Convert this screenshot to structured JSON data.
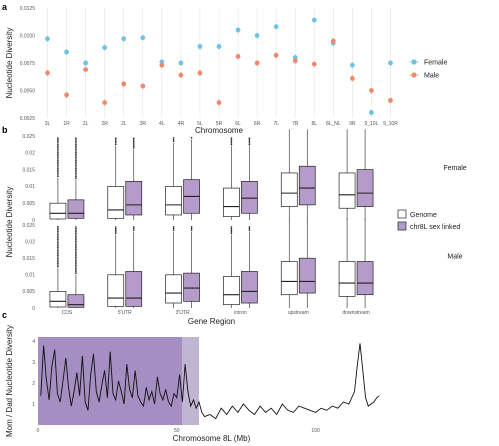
{
  "panels": [
    {
      "letter": "a",
      "chart_data": {
        "type": "scatter",
        "categories": [
          "3L",
          "1R",
          "2L",
          "2R",
          "2L",
          "3R",
          "4L",
          "4R",
          "5L",
          "5R",
          "6L",
          "6R",
          "7L",
          "7R",
          "8L",
          "8L_NL",
          "9R",
          "9_10L",
          "9_10R"
        ],
        "xlabel": "Chromosome",
        "ylabel": "Nucleotide Diversity",
        "ylim": [
          0.0025,
          0.0125
        ],
        "yticks": [
          0.0025,
          0.005,
          0.0075,
          0.01,
          0.0125
        ],
        "ytick_labels": [
          "0.0025",
          "0.0050",
          "0.0075",
          "0.0100",
          "0.0125"
        ],
        "grid": true,
        "legend_position": "right",
        "series": [
          {
            "name": "Female",
            "color": "#6fc3e6",
            "values": [
              0.0097,
              0.0085,
              0.0075,
              0.0089,
              0.0097,
              0.0098,
              0.0076,
              0.0075,
              0.009,
              0.009,
              0.0105,
              0.01,
              0.0108,
              0.008,
              0.0114,
              0.0093,
              0.0073,
              0.003,
              0.0075
            ]
          },
          {
            "name": "Male",
            "color": "#f0896b",
            "values": [
              0.0066,
              0.0046,
              0.0069,
              0.0039,
              0.0056,
              0.0054,
              0.0073,
              0.0064,
              0.0066,
              0.0039,
              0.0081,
              0.0075,
              0.0082,
              0.0077,
              0.0074,
              0.0095,
              0.0061,
              0.005,
              0.0041
            ]
          }
        ]
      }
    },
    {
      "letter": "b",
      "chart_data": {
        "type": "box",
        "categories": [
          "CDS",
          "5'UTR",
          "3'UTR",
          "intron",
          "upstream",
          "downstream"
        ],
        "xlabel": "Gene Region",
        "ylabel": "Nucleotide Diversity",
        "ylim": [
          0,
          0.025
        ],
        "yticks": [
          0,
          0.005,
          0.01,
          0.015,
          0.02,
          0.025
        ],
        "ytick_labels": [
          "0",
          "0.005",
          "0.01",
          "0.015",
          "0.02",
          "0.025"
        ],
        "legend_position": "right",
        "legend": [
          {
            "label": "Genome",
            "color": "#ffffff"
          },
          {
            "label": "chr8L sex linked",
            "color": "#b59bc9"
          }
        ],
        "facets": [
          {
            "label": "Female",
            "series": [
              {
                "name": "Genome",
                "boxes": [
                  {
                    "q1": 0.0003,
                    "median": 0.002,
                    "q3": 0.005,
                    "whisker_low": 0,
                    "whisker_high": 0.0125
                  },
                  {
                    "q1": 0.0005,
                    "median": 0.003,
                    "q3": 0.01,
                    "whisker_low": 0,
                    "whisker_high": 0.022
                  },
                  {
                    "q1": 0.0015,
                    "median": 0.0045,
                    "q3": 0.01,
                    "whisker_low": 0,
                    "whisker_high": 0.023
                  },
                  {
                    "q1": 0.001,
                    "median": 0.004,
                    "q3": 0.0095,
                    "whisker_low": 0,
                    "whisker_high": 0.022
                  },
                  {
                    "q1": 0.004,
                    "median": 0.008,
                    "q3": 0.014,
                    "whisker_low": 0,
                    "whisker_high": 0.027
                  },
                  {
                    "q1": 0.0035,
                    "median": 0.0075,
                    "q3": 0.014,
                    "whisker_low": 0,
                    "whisker_high": 0.027
                  }
                ]
              },
              {
                "name": "chr8L sex linked",
                "boxes": [
                  {
                    "q1": 0.0005,
                    "median": 0.002,
                    "q3": 0.006,
                    "whisker_low": 0,
                    "whisker_high": 0.012
                  },
                  {
                    "q1": 0.0015,
                    "median": 0.0045,
                    "q3": 0.0115,
                    "whisker_low": 0,
                    "whisker_high": 0.021
                  },
                  {
                    "q1": 0.002,
                    "median": 0.007,
                    "q3": 0.012,
                    "whisker_low": 0,
                    "whisker_high": 0.024
                  },
                  {
                    "q1": 0.002,
                    "median": 0.0065,
                    "q3": 0.0115,
                    "whisker_low": 0,
                    "whisker_high": 0.022
                  },
                  {
                    "q1": 0.0045,
                    "median": 0.0095,
                    "q3": 0.016,
                    "whisker_low": 0,
                    "whisker_high": 0.027
                  },
                  {
                    "q1": 0.004,
                    "median": 0.008,
                    "q3": 0.015,
                    "whisker_low": 0,
                    "whisker_high": 0.027
                  }
                ]
              }
            ]
          },
          {
            "label": "Male",
            "series": [
              {
                "name": "Genome",
                "boxes": [
                  {
                    "q1": 0.0003,
                    "median": 0.002,
                    "q3": 0.005,
                    "whisker_low": 0,
                    "whisker_high": 0.012
                  },
                  {
                    "q1": 0.0005,
                    "median": 0.003,
                    "q3": 0.01,
                    "whisker_low": 0,
                    "whisker_high": 0.022
                  },
                  {
                    "q1": 0.0015,
                    "median": 0.0045,
                    "q3": 0.01,
                    "whisker_low": 0,
                    "whisker_high": 0.023
                  },
                  {
                    "q1": 0.001,
                    "median": 0.004,
                    "q3": 0.0095,
                    "whisker_low": 0,
                    "whisker_high": 0.022
                  },
                  {
                    "q1": 0.004,
                    "median": 0.008,
                    "q3": 0.014,
                    "whisker_low": 0,
                    "whisker_high": 0.027
                  },
                  {
                    "q1": 0.0035,
                    "median": 0.0075,
                    "q3": 0.014,
                    "whisker_low": 0,
                    "whisker_high": 0.027
                  }
                ]
              },
              {
                "name": "chr8L sex linked",
                "boxes": [
                  {
                    "q1": 0.0002,
                    "median": 0.001,
                    "q3": 0.004,
                    "whisker_low": 0,
                    "whisker_high": 0.01
                  },
                  {
                    "q1": 0.0005,
                    "median": 0.003,
                    "q3": 0.011,
                    "whisker_low": 0,
                    "whisker_high": 0.023
                  },
                  {
                    "q1": 0.002,
                    "median": 0.006,
                    "q3": 0.0105,
                    "whisker_low": 0,
                    "whisker_high": 0.023
                  },
                  {
                    "q1": 0.0015,
                    "median": 0.005,
                    "q3": 0.011,
                    "whisker_low": 0,
                    "whisker_high": 0.023
                  },
                  {
                    "q1": 0.0045,
                    "median": 0.008,
                    "q3": 0.015,
                    "whisker_low": 0,
                    "whisker_high": 0.027
                  },
                  {
                    "q1": 0.004,
                    "median": 0.0075,
                    "q3": 0.014,
                    "whisker_low": 0,
                    "whisker_high": 0.027
                  }
                ]
              }
            ]
          }
        ]
      }
    },
    {
      "letter": "c",
      "chart_data": {
        "type": "line",
        "xlabel": "Chromosome 8L (Mb)",
        "ylabel": "Mom / Dad Nucleotide Diversity",
        "xlim": [
          0,
          125
        ],
        "ylim": [
          0,
          4.2
        ],
        "xticks": [
          0,
          50,
          100
        ],
        "xtick_labels": [
          "0",
          "50",
          "100"
        ],
        "yticks": [
          1,
          2,
          3,
          4
        ],
        "ytick_labels": [
          "1",
          "2",
          "3",
          "4"
        ],
        "shaded_regions": [
          {
            "x0": 0,
            "x1": 52,
            "color": "#a58ec2"
          },
          {
            "x0": 52,
            "x1": 58,
            "color": "#c2b4d3"
          }
        ],
        "series": [
          {
            "color": "#111111",
            "x": [
              1,
              2,
              3,
              4,
              5,
              6,
              7,
              8,
              9,
              10,
              11,
              12,
              13,
              14,
              15,
              16,
              17,
              18,
              19,
              20,
              21,
              22,
              23,
              24,
              25,
              26,
              27,
              28,
              29,
              30,
              31,
              32,
              33,
              34,
              35,
              36,
              37,
              38,
              39,
              40,
              41,
              42,
              43,
              44,
              45,
              46,
              47,
              48,
              49,
              50,
              51,
              52,
              53,
              54,
              55,
              56,
              57,
              58,
              59,
              60,
              62,
              64,
              66,
              68,
              70,
              72,
              74,
              76,
              78,
              80,
              82,
              84,
              86,
              88,
              90,
              92,
              94,
              96,
              98,
              100,
              102,
              104,
              106,
              108,
              110,
              112,
              114,
              115,
              116,
              117,
              118,
              119,
              120,
              121,
              122,
              123
            ],
            "y": [
              1.4,
              3.8,
              2.2,
              1.2,
              2.8,
              3.6,
              1.5,
              1.1,
              2.1,
              3.2,
              1.8,
              0.9,
              1.6,
              2.5,
              1.4,
              3.3,
              1.1,
              0.7,
              2.4,
              3.4,
              1.6,
              1.1,
              1.9,
              2.6,
              1.3,
              3.5,
              1.5,
              1.2,
              2.1,
              1.6,
              1.0,
              2.9,
              1.7,
              1.3,
              2.6,
              1.4,
              1.1,
              0.9,
              1.8,
              1.2,
              1.6,
              1.0,
              2.3,
              1.5,
              1.2,
              1.7,
              1.1,
              0.9,
              1.5,
              1.3,
              2.4,
              1.1,
              2.9,
              1.6,
              0.9,
              1.2,
              0.8,
              1.1,
              0.6,
              0.4,
              0.5,
              0.3,
              0.8,
              0.5,
              0.9,
              0.6,
              1.0,
              0.7,
              0.5,
              0.9,
              0.6,
              0.8,
              0.5,
              1.0,
              0.7,
              0.6,
              0.9,
              0.8,
              0.7,
              0.6,
              0.8,
              0.7,
              0.9,
              0.8,
              1.1,
              1.0,
              1.6,
              2.8,
              3.9,
              2.6,
              1.3,
              0.9,
              1.0,
              1.1,
              1.3,
              1.4
            ]
          }
        ]
      }
    }
  ]
}
